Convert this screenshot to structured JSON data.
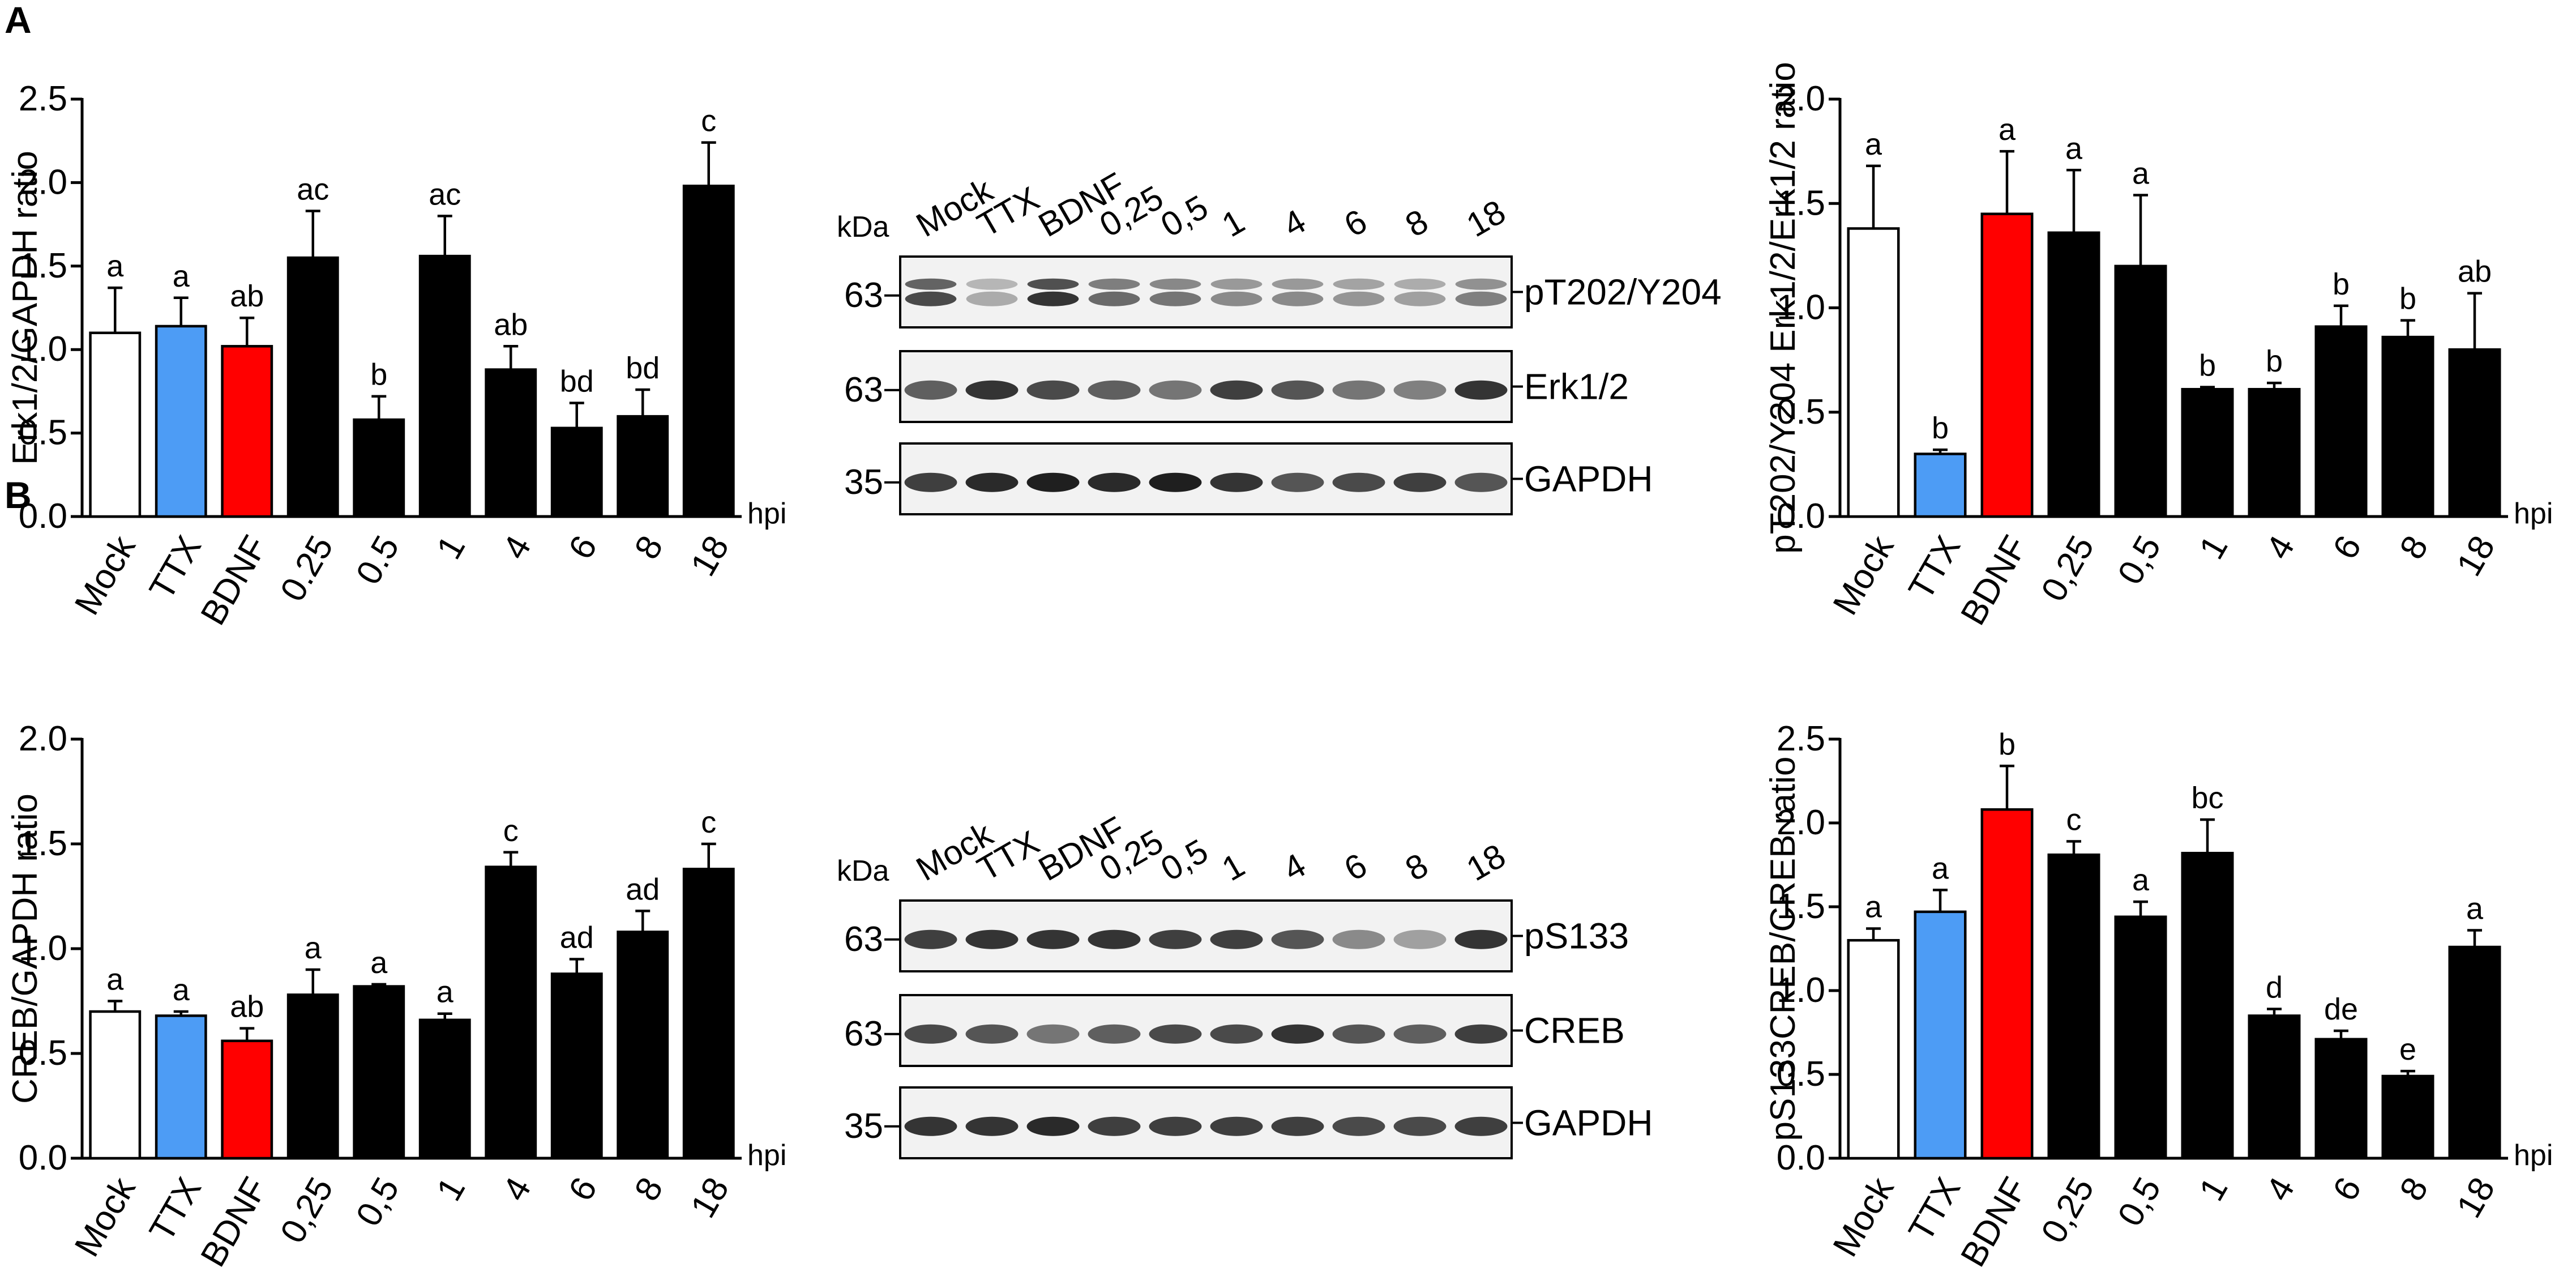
{
  "panels": [
    {
      "label": "A"
    },
    {
      "label": "B"
    }
  ],
  "colors": {
    "mock": "#ffffff",
    "ttx": "#4d9cf5",
    "bdnf": "#ff0000",
    "time": "#000000"
  },
  "chart_data": [
    {
      "type": "bar",
      "panel": "A",
      "ylabel": "Erk1/2/GAPDH ratio",
      "xunit": "hpi",
      "ylim": [
        0,
        2.5
      ],
      "yticks": [
        "0.0",
        "0.5",
        "1.0",
        "1.5",
        "2.0",
        "2.5"
      ],
      "categories": [
        "Mock",
        "TTX",
        "BDNF",
        "0.25",
        "0.5",
        "1",
        "4",
        "6",
        "8",
        "18"
      ],
      "values": [
        1.1,
        1.14,
        1.02,
        1.55,
        0.58,
        1.56,
        0.88,
        0.53,
        0.6,
        1.98
      ],
      "errors": [
        0.27,
        0.17,
        0.17,
        0.28,
        0.14,
        0.24,
        0.14,
        0.15,
        0.16,
        0.26
      ],
      "letters": [
        "a",
        "a",
        "ab",
        "ac",
        "b",
        "ac",
        "ab",
        "bd",
        "bd",
        "c"
      ],
      "bar_colors": [
        "#ffffff",
        "#4d9cf5",
        "#ff0000",
        "#000000",
        "#000000",
        "#000000",
        "#000000",
        "#000000",
        "#000000",
        "#000000"
      ]
    },
    {
      "type": "bar",
      "panel": "A",
      "ylabel": "pT202/Y204 Erk1/2/Erk1/2 ratio",
      "xunit": "hpi",
      "ylim": [
        0,
        2.0
      ],
      "yticks": [
        "0.0",
        "0.5",
        "1.0",
        "1.5",
        "2.0"
      ],
      "categories": [
        "Mock",
        "TTX",
        "BDNF",
        "0,25",
        "0,5",
        "1",
        "4",
        "6",
        "8",
        "18"
      ],
      "values": [
        1.38,
        0.3,
        1.45,
        1.36,
        1.2,
        0.61,
        0.61,
        0.91,
        0.86,
        0.8
      ],
      "errors": [
        0.3,
        0.02,
        0.3,
        0.3,
        0.34,
        0.01,
        0.03,
        0.1,
        0.08,
        0.27
      ],
      "letters": [
        "a",
        "b",
        "a",
        "a",
        "a",
        "b",
        "b",
        "b",
        "b",
        "ab"
      ],
      "bar_colors": [
        "#ffffff",
        "#4d9cf5",
        "#ff0000",
        "#000000",
        "#000000",
        "#000000",
        "#000000",
        "#000000",
        "#000000",
        "#000000"
      ]
    },
    {
      "type": "bar",
      "panel": "B",
      "ylabel": "CREB/GAPDH ratio",
      "xunit": "hpi",
      "ylim": [
        0,
        2.0
      ],
      "yticks": [
        "0.0",
        "0.5",
        "1.0",
        "1.5",
        "2.0"
      ],
      "categories": [
        "Mock",
        "TTX",
        "BDNF",
        "0,25",
        "0,5",
        "1",
        "4",
        "6",
        "8",
        "18"
      ],
      "values": [
        0.7,
        0.68,
        0.56,
        0.78,
        0.82,
        0.66,
        1.39,
        0.88,
        1.08,
        1.38
      ],
      "errors": [
        0.05,
        0.02,
        0.06,
        0.12,
        0.01,
        0.03,
        0.07,
        0.07,
        0.1,
        0.12
      ],
      "letters": [
        "a",
        "a",
        "ab",
        "a",
        "a",
        "a",
        "c",
        "ad",
        "ad",
        "c"
      ],
      "bar_colors": [
        "#ffffff",
        "#4d9cf5",
        "#ff0000",
        "#000000",
        "#000000",
        "#000000",
        "#000000",
        "#000000",
        "#000000",
        "#000000"
      ]
    },
    {
      "type": "bar",
      "panel": "B",
      "ylabel": "pS133CREB/CREB ratio",
      "xunit": "hpi",
      "ylim": [
        0,
        2.5
      ],
      "yticks": [
        "0.0",
        "0.5",
        "1.0",
        "1.5",
        "2.0",
        "2.5"
      ],
      "categories": [
        "Mock",
        "TTX",
        "BDNF",
        "0,25",
        "0,5",
        "1",
        "4",
        "6",
        "8",
        "18"
      ],
      "values": [
        1.3,
        1.47,
        2.08,
        1.81,
        1.44,
        1.82,
        0.85,
        0.71,
        0.49,
        1.26
      ],
      "errors": [
        0.07,
        0.13,
        0.26,
        0.08,
        0.09,
        0.2,
        0.04,
        0.05,
        0.03,
        0.1
      ],
      "letters": [
        "a",
        "a",
        "b",
        "c",
        "a",
        "bc",
        "d",
        "de",
        "e",
        "a"
      ],
      "bar_colors": [
        "#ffffff",
        "#4d9cf5",
        "#ff0000",
        "#000000",
        "#000000",
        "#000000",
        "#000000",
        "#000000",
        "#000000",
        "#000000"
      ]
    }
  ],
  "blots": [
    {
      "panel": "A",
      "lanes": [
        "Mock",
        "TTX",
        "BDNF",
        "0,25",
        "0,5",
        "1",
        "4",
        "6",
        "8",
        "18"
      ],
      "kda_label": "kDa",
      "rows": [
        {
          "name": "pT202/Y204",
          "marker": "63",
          "intensities": [
            0.75,
            0.3,
            0.85,
            0.6,
            0.55,
            0.45,
            0.45,
            0.4,
            0.35,
            0.5
          ],
          "double": true
        },
        {
          "name": "Erk1/2",
          "marker": "63",
          "intensities": [
            0.65,
            0.85,
            0.75,
            0.65,
            0.55,
            0.8,
            0.7,
            0.55,
            0.5,
            0.85
          ],
          "double": false
        },
        {
          "name": "GAPDH",
          "marker": "35",
          "intensities": [
            0.8,
            0.9,
            0.95,
            0.9,
            0.95,
            0.85,
            0.7,
            0.75,
            0.8,
            0.7
          ],
          "double": false
        }
      ]
    },
    {
      "panel": "B",
      "lanes": [
        "Mock",
        "TTX",
        "BDNF",
        "0,25",
        "0,5",
        "1",
        "4",
        "6",
        "8",
        "18"
      ],
      "kda_label": "kDa",
      "rows": [
        {
          "name": "pS133",
          "marker": "63",
          "intensities": [
            0.8,
            0.85,
            0.85,
            0.85,
            0.8,
            0.8,
            0.7,
            0.45,
            0.35,
            0.85
          ],
          "double": false
        },
        {
          "name": "CREB",
          "marker": "63",
          "intensities": [
            0.75,
            0.7,
            0.55,
            0.65,
            0.75,
            0.75,
            0.85,
            0.7,
            0.65,
            0.8
          ],
          "double": false
        },
        {
          "name": "GAPDH",
          "marker": "35",
          "intensities": [
            0.85,
            0.85,
            0.9,
            0.8,
            0.8,
            0.8,
            0.8,
            0.75,
            0.75,
            0.8
          ],
          "double": false
        }
      ]
    }
  ]
}
